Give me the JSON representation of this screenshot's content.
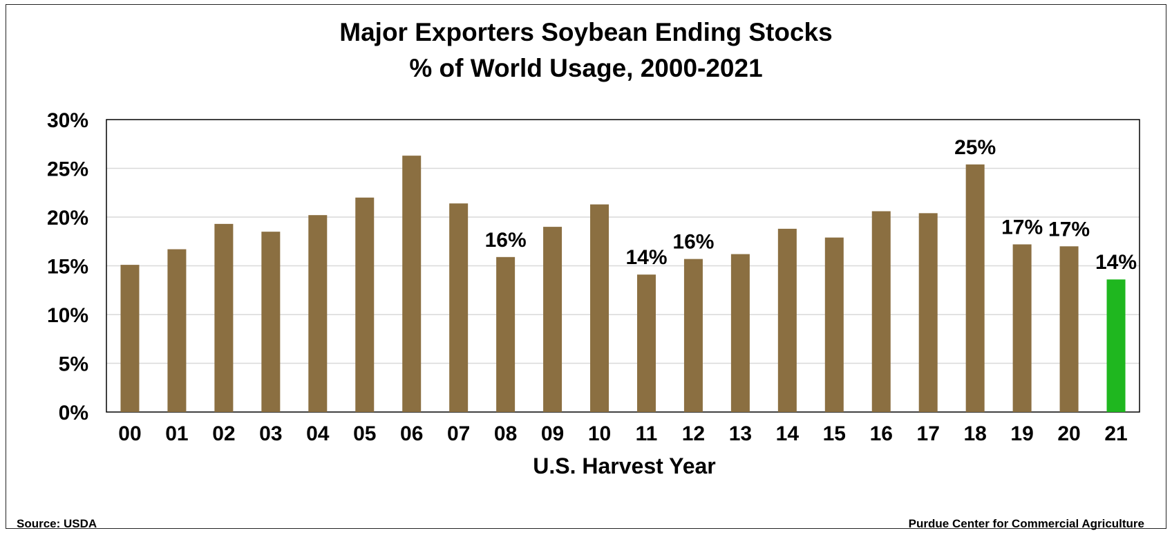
{
  "chart_data": {
    "type": "bar",
    "title_line1": "Major Exporters Soybean Ending Stocks",
    "title_line2": "% of World Usage, 2000-2021",
    "xlabel": "U.S. Harvest Year",
    "ylabel": "",
    "categories": [
      "00",
      "01",
      "02",
      "03",
      "04",
      "05",
      "06",
      "07",
      "08",
      "09",
      "10",
      "11",
      "12",
      "13",
      "14",
      "15",
      "16",
      "17",
      "18",
      "19",
      "20",
      "21"
    ],
    "values": [
      15.1,
      16.7,
      19.3,
      18.5,
      20.2,
      22.0,
      26.3,
      21.4,
      15.9,
      19.0,
      21.3,
      14.1,
      15.7,
      16.2,
      18.8,
      17.9,
      20.6,
      20.4,
      25.4,
      17.2,
      17.0,
      13.6
    ],
    "data_labels": [
      {
        "index": 8,
        "text": "16%"
      },
      {
        "index": 11,
        "text": "14%"
      },
      {
        "index": 12,
        "text": "16%"
      },
      {
        "index": 18,
        "text": "25%"
      },
      {
        "index": 19,
        "text": "17%"
      },
      {
        "index": 20,
        "text": "17%"
      },
      {
        "index": 21,
        "text": "14%"
      }
    ],
    "ylim": [
      0,
      30
    ],
    "yticks": [
      0,
      5,
      10,
      15,
      20,
      25,
      30
    ],
    "ytick_labels": [
      "0%",
      "5%",
      "10%",
      "15%",
      "20%",
      "25%",
      "30%"
    ],
    "grid": true,
    "colors": {
      "bar": "#8B6F41",
      "highlight": "#1FB71F",
      "grid": "#d9d9d9",
      "axis": "#000000"
    },
    "highlight_index": 21
  },
  "footer": {
    "source": "Source:  USDA",
    "credit": "Purdue Center for Commercial Agriculture"
  }
}
